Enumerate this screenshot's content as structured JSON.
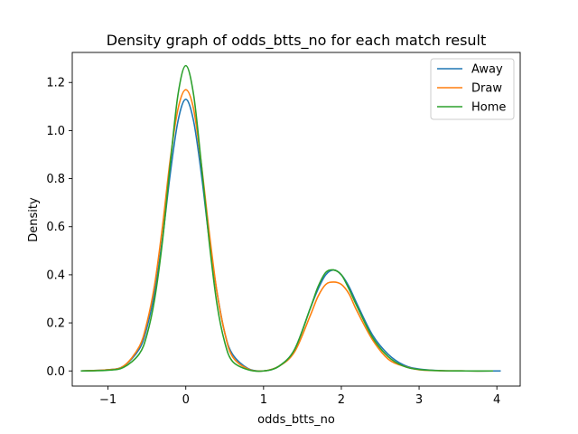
{
  "chart_data": {
    "type": "line",
    "title": "Density graph of odds_btts_no for each match result",
    "xlabel": "odds_btts_no",
    "ylabel": "Density",
    "xlim": [
      -1.46,
      4.3
    ],
    "ylim": [
      -0.063,
      1.325
    ],
    "xticks": [
      -1,
      0,
      1,
      2,
      3,
      4
    ],
    "xtick_labels": [
      "−1",
      "0",
      "1",
      "2",
      "3",
      "4"
    ],
    "yticks": [
      0.0,
      0.2,
      0.4,
      0.6,
      0.8,
      1.0,
      1.2
    ],
    "ytick_labels": [
      "0.0",
      "0.2",
      "0.4",
      "0.6",
      "0.8",
      "1.0",
      "1.2"
    ],
    "grid": false,
    "legend_position": "top-right",
    "series": [
      {
        "name": "Away",
        "color": "#1f77b4",
        "x": [
          -1.35,
          -1.0,
          -0.8,
          -0.6,
          -0.5,
          -0.4,
          -0.3,
          -0.2,
          -0.1,
          0.0,
          0.1,
          0.2,
          0.3,
          0.4,
          0.5,
          0.6,
          0.8,
          1.0,
          1.2,
          1.4,
          1.6,
          1.7,
          1.8,
          1.9,
          2.0,
          2.1,
          2.2,
          2.4,
          2.6,
          2.8,
          3.0,
          3.3,
          3.6,
          4.05
        ],
        "y": [
          0.0,
          0.005,
          0.02,
          0.09,
          0.18,
          0.33,
          0.55,
          0.82,
          1.04,
          1.13,
          1.04,
          0.82,
          0.55,
          0.33,
          0.16,
          0.07,
          0.01,
          0.0,
          0.02,
          0.09,
          0.26,
          0.34,
          0.4,
          0.42,
          0.4,
          0.35,
          0.28,
          0.15,
          0.07,
          0.025,
          0.008,
          0.001,
          0.0,
          0.0
        ]
      },
      {
        "name": "Draw",
        "color": "#ff7f0e",
        "x": [
          -1.35,
          -1.0,
          -0.8,
          -0.6,
          -0.5,
          -0.4,
          -0.3,
          -0.2,
          -0.1,
          0.0,
          0.1,
          0.2,
          0.3,
          0.4,
          0.5,
          0.6,
          0.8,
          1.0,
          1.2,
          1.4,
          1.6,
          1.7,
          1.8,
          1.9,
          2.0,
          2.1,
          2.2,
          2.4,
          2.6,
          2.8,
          3.0,
          3.3,
          3.6,
          3.95
        ],
        "y": [
          0.0,
          0.005,
          0.02,
          0.1,
          0.2,
          0.36,
          0.6,
          0.88,
          1.09,
          1.17,
          1.09,
          0.86,
          0.58,
          0.33,
          0.16,
          0.06,
          0.008,
          0.0,
          0.02,
          0.08,
          0.23,
          0.31,
          0.36,
          0.37,
          0.36,
          0.32,
          0.25,
          0.13,
          0.05,
          0.02,
          0.005,
          0.001,
          0.0,
          0.0
        ]
      },
      {
        "name": "Home",
        "color": "#2ca02c",
        "x": [
          -1.35,
          -1.0,
          -0.8,
          -0.6,
          -0.5,
          -0.4,
          -0.3,
          -0.2,
          -0.1,
          0.0,
          0.1,
          0.2,
          0.3,
          0.4,
          0.5,
          0.6,
          0.8,
          1.0,
          1.2,
          1.4,
          1.6,
          1.7,
          1.8,
          1.9,
          2.0,
          2.1,
          2.2,
          2.4,
          2.6,
          2.8,
          3.0,
          3.3,
          3.6,
          3.95
        ],
        "y": [
          0.0,
          0.003,
          0.015,
          0.07,
          0.15,
          0.3,
          0.54,
          0.86,
          1.15,
          1.27,
          1.15,
          0.86,
          0.54,
          0.28,
          0.12,
          0.04,
          0.005,
          0.0,
          0.02,
          0.09,
          0.26,
          0.35,
          0.41,
          0.42,
          0.4,
          0.34,
          0.27,
          0.14,
          0.06,
          0.02,
          0.006,
          0.001,
          0.0,
          0.0
        ]
      }
    ]
  }
}
